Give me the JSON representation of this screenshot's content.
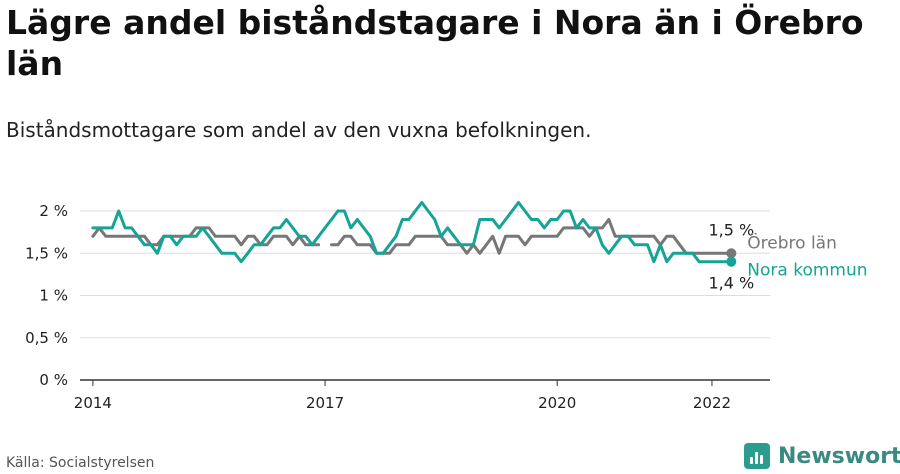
{
  "header": {
    "title": "Lägre andel biståndstagare i Nora än i Örebro län",
    "subtitle": "Biståndsmottagare som andel av den vuxna befolkningen."
  },
  "footer": {
    "source": "Källa: Socialstyrelsen",
    "brand": "Newsworthy"
  },
  "colors": {
    "orebro": "#777777",
    "nora": "#15a495",
    "grid": "#dddddd",
    "axis": "#333333"
  },
  "chart_data": {
    "type": "line",
    "x_start": "2014-01",
    "x_end": "2022-04",
    "xlim": [
      "2013-11",
      "2022-10"
    ],
    "ylim": [
      0,
      2.0
    ],
    "y_ticks": [
      {
        "value": 0,
        "label": "0 %"
      },
      {
        "value": 0.5,
        "label": "0,5 %"
      },
      {
        "value": 1,
        "label": "1 %"
      },
      {
        "value": 1.5,
        "label": "1,5 %"
      },
      {
        "value": 2,
        "label": "2 %"
      }
    ],
    "x_ticks": [
      {
        "value": "2014-01",
        "label": "2014"
      },
      {
        "value": "2017-01",
        "label": "2017"
      },
      {
        "value": "2020-01",
        "label": "2020"
      },
      {
        "value": "2022-01",
        "label": "2022"
      }
    ],
    "grid": true,
    "series": [
      {
        "name": "Örebro län",
        "end_label": "1,5 %",
        "values": [
          1.7,
          1.8,
          1.7,
          1.7,
          1.7,
          1.7,
          1.7,
          1.7,
          1.7,
          1.6,
          1.6,
          1.7,
          1.7,
          1.7,
          1.7,
          1.7,
          1.8,
          1.8,
          1.8,
          1.7,
          1.7,
          1.7,
          1.7,
          1.6,
          1.7,
          1.7,
          1.6,
          1.6,
          1.7,
          1.7,
          1.7,
          1.6,
          1.7,
          1.6,
          1.6,
          1.6,
          null,
          1.6,
          1.6,
          1.7,
          1.7,
          1.6,
          1.6,
          1.6,
          1.5,
          1.5,
          1.5,
          1.6,
          1.6,
          1.6,
          1.7,
          1.7,
          1.7,
          1.7,
          1.7,
          1.6,
          1.6,
          1.6,
          1.5,
          1.6,
          1.5,
          1.6,
          1.7,
          1.5,
          1.7,
          1.7,
          1.7,
          1.6,
          1.7,
          1.7,
          1.7,
          1.7,
          1.7,
          1.8,
          1.8,
          1.8,
          1.8,
          1.7,
          1.8,
          1.8,
          1.9,
          1.7,
          1.7,
          1.7,
          1.7,
          1.7,
          1.7,
          1.7,
          1.6,
          1.7,
          1.7,
          1.6,
          1.5,
          1.5,
          1.5,
          1.5,
          1.5,
          1.5,
          1.5,
          1.5
        ]
      },
      {
        "name": "Nora kommun",
        "end_label": "1,4 %",
        "values": [
          1.8,
          1.8,
          1.8,
          1.8,
          2.0,
          1.8,
          1.8,
          1.7,
          1.6,
          1.6,
          1.5,
          1.7,
          1.7,
          1.6,
          1.7,
          1.7,
          1.7,
          1.8,
          1.7,
          1.6,
          1.5,
          1.5,
          1.5,
          1.4,
          1.5,
          1.6,
          1.6,
          1.7,
          1.8,
          1.8,
          1.9,
          1.8,
          1.7,
          1.7,
          1.6,
          1.7,
          1.8,
          1.9,
          2.0,
          2.0,
          1.8,
          1.9,
          1.8,
          1.7,
          1.5,
          1.5,
          1.6,
          1.7,
          1.9,
          1.9,
          2.0,
          2.1,
          2.0,
          1.9,
          1.7,
          1.8,
          1.7,
          1.6,
          1.6,
          1.6,
          1.9,
          1.9,
          1.9,
          1.8,
          1.9,
          2.0,
          2.1,
          2.0,
          1.9,
          1.9,
          1.8,
          1.9,
          1.9,
          2.0,
          2.0,
          1.8,
          1.9,
          1.8,
          1.8,
          1.6,
          1.5,
          1.6,
          1.7,
          1.7,
          1.6,
          1.6,
          1.6,
          1.4,
          1.6,
          1.4,
          1.5,
          1.5,
          1.5,
          1.5,
          1.4,
          1.4,
          1.4,
          1.4,
          1.4,
          1.4
        ]
      }
    ]
  }
}
